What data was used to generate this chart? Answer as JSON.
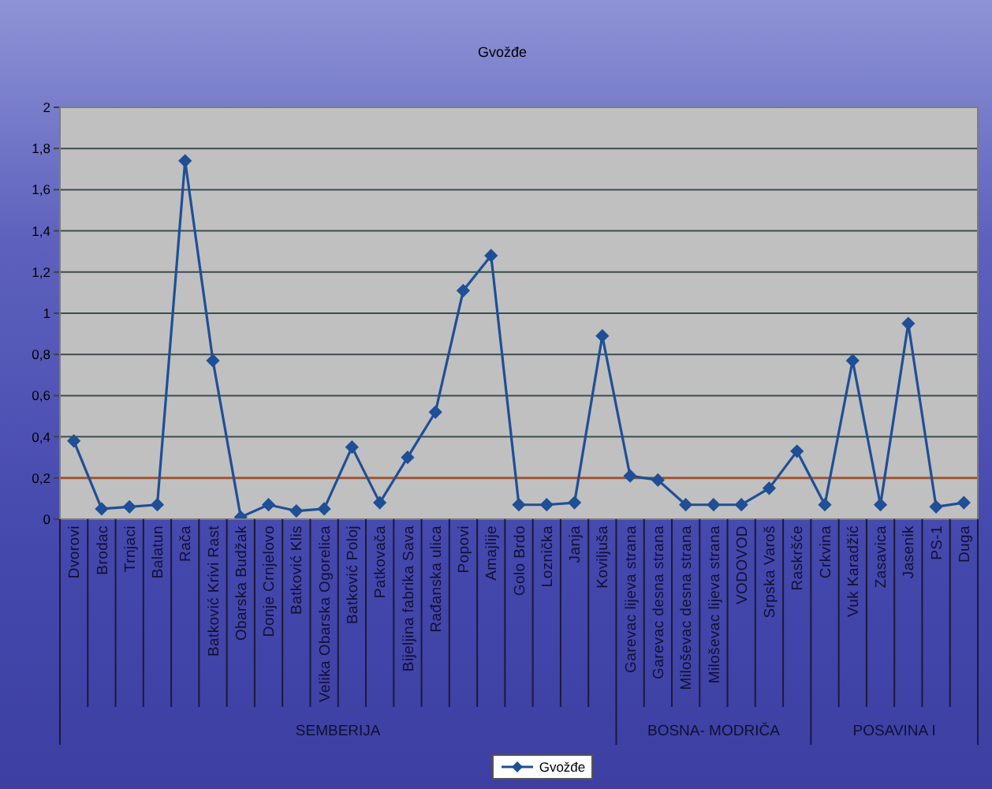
{
  "chart_data": {
    "type": "line",
    "title": "Gvožđe",
    "categories": [
      "Dvorovi",
      "Brodac",
      "Trnjaci",
      "Balatun",
      "Rača",
      "Batković Krivi Rast",
      "Obarska Budžak",
      "Donje Crnjelovo",
      "Batković Klis",
      "Velika Obarska Ogorelica",
      "Batković Poloj",
      "Patkovača",
      "Bijeljina fabrika Sava",
      "Rađanska ulica",
      "Popovi",
      "Amajlije",
      "Golo Brdo",
      "Loznička",
      "Janja",
      "Koviljuša",
      "Garevac lijeva strana",
      "Garevac desna strana",
      "Miloševac desna strana",
      "Miloševac lijeva strana",
      "VODOVOD",
      "Srpska Varoš",
      "Raskršće",
      "Crkvina",
      "Vuk Karadžić",
      "Zasavica",
      "Jasenik",
      "PS-1",
      "Duga"
    ],
    "series": [
      {
        "name": "Gvožđe",
        "color": "#1f4f96",
        "values": [
          0.38,
          0.05,
          0.06,
          0.07,
          1.74,
          0.77,
          0.01,
          0.07,
          0.04,
          0.05,
          0.35,
          0.08,
          0.3,
          0.52,
          1.11,
          1.28,
          0.07,
          0.07,
          0.08,
          0.89,
          0.21,
          0.19,
          0.07,
          0.07,
          0.07,
          0.15,
          0.33,
          0.07,
          0.77,
          0.07,
          0.95,
          0.06,
          0.08
        ]
      }
    ],
    "ylim": [
      0,
      2
    ],
    "yticks": [
      0,
      {
        "value": 0.2,
        "label": "0,2"
      },
      {
        "value": 0.4,
        "label": "0,4"
      },
      {
        "value": 0.6,
        "label": "0,6"
      },
      {
        "value": 0.8,
        "label": "0,8"
      },
      1,
      {
        "value": 1.2,
        "label": "1,2"
      },
      {
        "value": 1.4,
        "label": "1,4"
      },
      {
        "value": 1.6,
        "label": "1,6"
      },
      {
        "value": 1.8,
        "label": "1,8"
      },
      2
    ],
    "grid": "y",
    "legend": "bottom",
    "marker": "diamond",
    "line_style": "solid",
    "ref_lines": [
      {
        "axis": "y",
        "value": 0.2,
        "color": "#a0522d"
      }
    ],
    "annotations": [
      "SEMBERIJA",
      "BOSNA- MODRIČA",
      "POSAVINA I"
    ]
  }
}
